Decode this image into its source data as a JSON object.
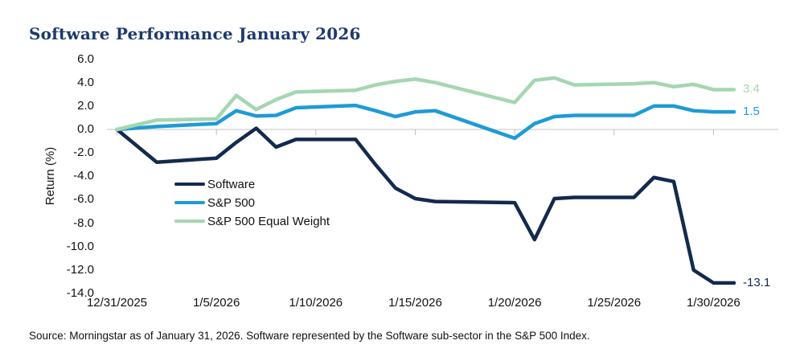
{
  "page": {
    "source": "Source: Morningstar as of January 31, 2026. Software represented by the Software sub-sector in the S&P 500 Index."
  },
  "chart_data": {
    "type": "line",
    "title": "Software Performance January 2026",
    "xlabel": "",
    "ylabel": "Return (%)",
    "ylim": [
      -14.0,
      6.0
    ],
    "ytick_labels": [
      "6.0",
      "4.0",
      "2.0",
      "0.0",
      "-2.0",
      "-4.0",
      "-6.0",
      "-8.0",
      "-10.0",
      "-12.0",
      "-14.0"
    ],
    "xtick_labels": [
      "12/31/2025",
      "1/5/2026",
      "1/10/2026",
      "1/15/2026",
      "1/20/2026",
      "1/25/2026",
      "1/30/2026"
    ],
    "grid": "zero-baseline-only",
    "legend_position": "inside-left-middle",
    "axis_colors": {
      "grid": "#d9d9d9",
      "tick": "#bfbfbf",
      "text": "#111111"
    },
    "x_dates": [
      "12/31/2025",
      "1/2/2026",
      "1/5/2026",
      "1/6/2026",
      "1/7/2026",
      "1/8/2026",
      "1/9/2026",
      "1/12/2026",
      "1/13/2026",
      "1/14/2026",
      "1/15/2026",
      "1/16/2026",
      "1/20/2026",
      "1/21/2026",
      "1/22/2026",
      "1/23/2026",
      "1/26/2026",
      "1/27/2026",
      "1/28/2026",
      "1/29/2026",
      "1/30/2026"
    ],
    "x_day_offsets": [
      0,
      2,
      5,
      6,
      7,
      8,
      9,
      12,
      13,
      14,
      15,
      16,
      20,
      21,
      22,
      23,
      26,
      27,
      28,
      29,
      30
    ],
    "series": [
      {
        "name": "Software",
        "color": "#132a4e",
        "end_label": "-13.1",
        "values": [
          0.0,
          -2.8,
          -2.45,
          -1.1,
          0.1,
          -1.5,
          -0.85,
          -0.85,
          -3.0,
          -5.0,
          -5.9,
          -6.15,
          -6.25,
          -9.4,
          -5.9,
          -5.8,
          -5.8,
          -4.1,
          -4.45,
          -12.0,
          -13.1
        ]
      },
      {
        "name": "S&P 500",
        "color": "#1f9ad7",
        "end_label": "1.5",
        "values": [
          0.0,
          0.25,
          0.5,
          1.6,
          1.15,
          1.2,
          1.85,
          2.05,
          1.6,
          1.1,
          1.5,
          1.6,
          -0.75,
          0.5,
          1.1,
          1.2,
          1.2,
          2.0,
          2.0,
          1.6,
          1.5
        ]
      },
      {
        "name": "S&P 500 Equal Weight",
        "color": "#a5d6b0",
        "end_label": "3.4",
        "values": [
          0.0,
          0.8,
          0.9,
          2.9,
          1.7,
          2.55,
          3.2,
          3.35,
          3.8,
          4.1,
          4.3,
          4.0,
          2.3,
          4.2,
          4.4,
          3.8,
          3.9,
          4.0,
          3.65,
          3.85,
          3.4
        ]
      }
    ]
  }
}
